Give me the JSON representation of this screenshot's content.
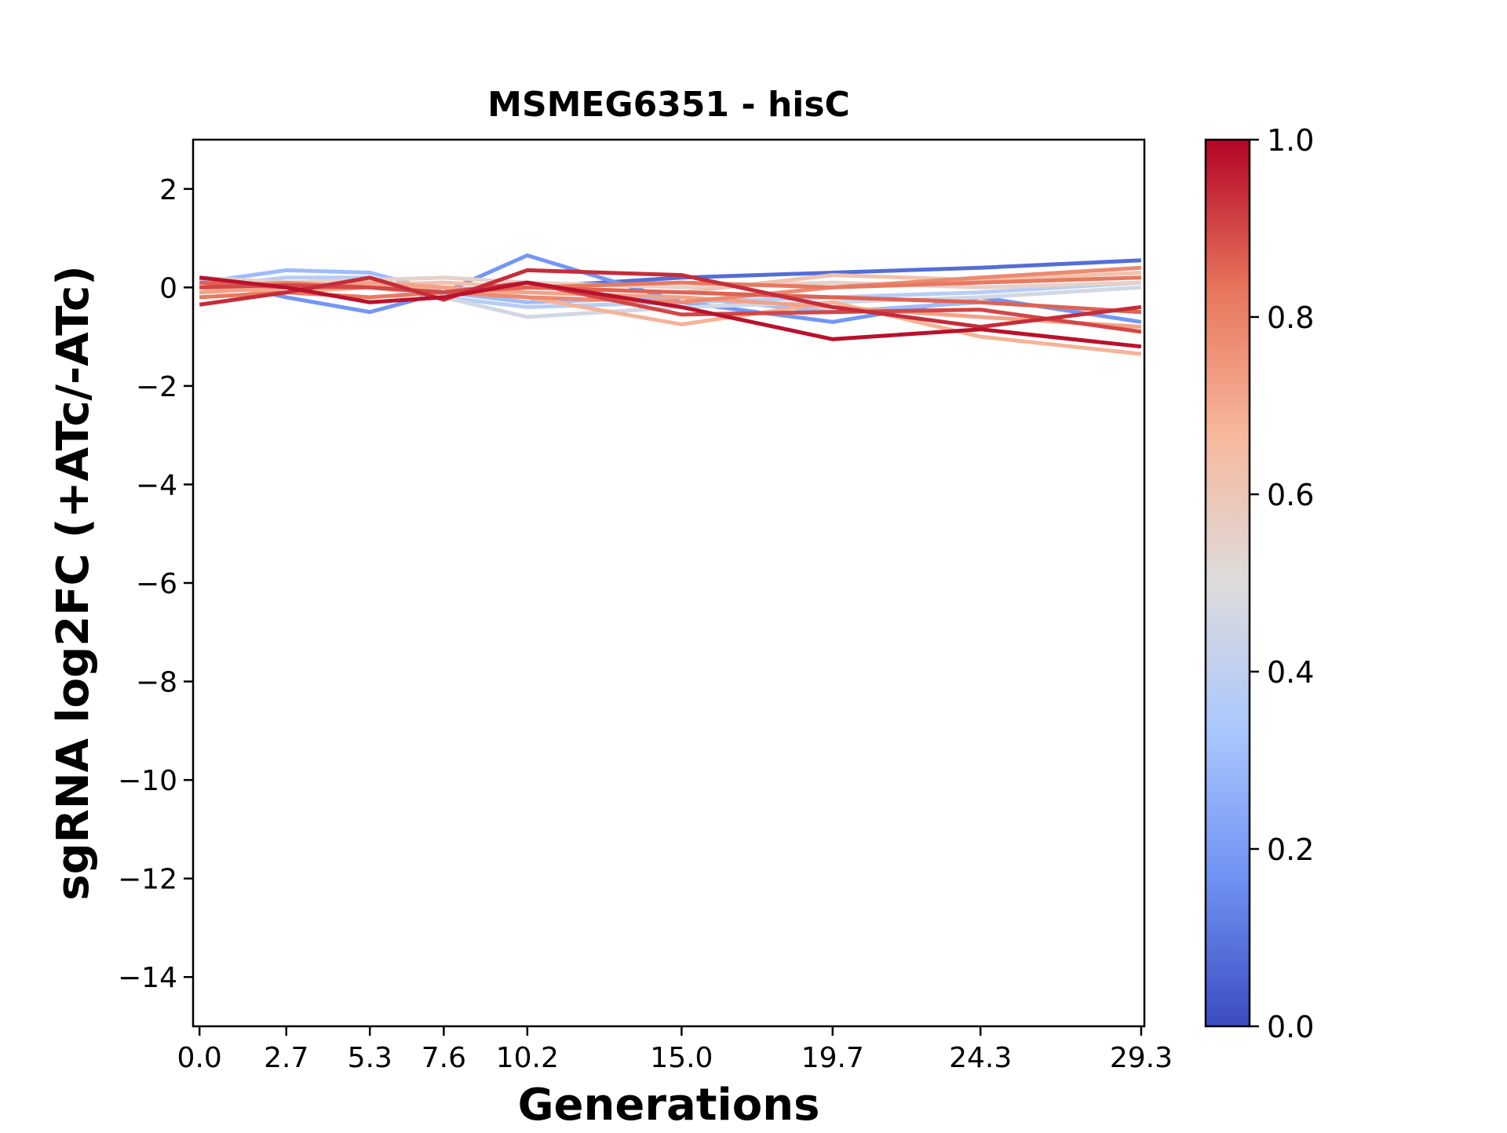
{
  "chart_data": {
    "type": "line",
    "title": "MSMEG6351 - hisC",
    "xlabel": "Generations",
    "ylabel": "sgRNA log2FC (+ATc/-ATc)",
    "x": [
      0.0,
      2.7,
      5.3,
      7.6,
      10.2,
      15.0,
      19.7,
      24.3,
      29.3
    ],
    "x_tick_labels": [
      "0.0",
      "2.7",
      "5.3",
      "7.6",
      "10.2",
      "15.0",
      "19.7",
      "24.3",
      "29.3"
    ],
    "xlim": [
      -0.2,
      29.4
    ],
    "ylim": [
      -15,
      3
    ],
    "y_ticks": [
      2,
      0,
      -2,
      -4,
      -6,
      -8,
      -10,
      -12,
      -14
    ],
    "y_tick_labels": [
      "2",
      "0",
      "−2",
      "−4",
      "−6",
      "−8",
      "−10",
      "−12",
      "−14"
    ],
    "grid": false,
    "colormap": "coolwarm",
    "colorbar": {
      "range": [
        0.0,
        1.0
      ],
      "tick_labels": [
        "0.0",
        "0.2",
        "0.4",
        "0.6",
        "0.8",
        "1.0"
      ],
      "colors": [
        "#3b4cc0",
        "#6f92f3",
        "#aac7fd",
        "#dddcdc",
        "#f7b89c",
        "#e7745b",
        "#b40426"
      ]
    },
    "series": [
      {
        "c": 0.08,
        "values": [
          0.0,
          0.1,
          0.0,
          -0.1,
          0.0,
          0.2,
          0.3,
          0.4,
          0.55
        ]
      },
      {
        "c": 0.18,
        "values": [
          0.2,
          -0.2,
          -0.5,
          -0.1,
          0.65,
          -0.3,
          -0.7,
          -0.2,
          -0.7
        ]
      },
      {
        "c": 0.3,
        "values": [
          0.1,
          0.35,
          0.3,
          -0.1,
          -0.3,
          -0.2,
          -0.5,
          -0.3,
          -0.5
        ]
      },
      {
        "c": 0.38,
        "values": [
          0.0,
          0.2,
          0.2,
          -0.2,
          -0.4,
          -0.3,
          -0.2,
          -0.1,
          0.1
        ]
      },
      {
        "c": 0.46,
        "values": [
          -0.1,
          0.0,
          0.0,
          -0.2,
          -0.6,
          -0.4,
          -0.3,
          -0.2,
          0.0
        ]
      },
      {
        "c": 0.55,
        "values": [
          0.2,
          0.1,
          0.15,
          0.2,
          0.1,
          0.0,
          0.1,
          0.0,
          0.1
        ]
      },
      {
        "c": 0.62,
        "values": [
          0.1,
          0.0,
          0.05,
          0.1,
          0.0,
          -0.1,
          0.25,
          0.15,
          0.3
        ]
      },
      {
        "c": 0.68,
        "values": [
          0.0,
          -0.1,
          0.0,
          0.0,
          -0.2,
          -0.75,
          -0.3,
          -1.0,
          -1.35
        ]
      },
      {
        "c": 0.72,
        "values": [
          -0.1,
          0.0,
          0.1,
          0.0,
          -0.1,
          -0.2,
          -0.4,
          -0.6,
          -0.8
        ]
      },
      {
        "c": 0.78,
        "values": [
          0.0,
          0.1,
          0.0,
          -0.1,
          -0.2,
          -0.3,
          0.0,
          0.2,
          0.4
        ]
      },
      {
        "c": 0.82,
        "values": [
          -0.2,
          -0.1,
          -0.2,
          -0.1,
          0.0,
          0.1,
          0.0,
          0.1,
          0.2
        ]
      },
      {
        "c": 0.86,
        "values": [
          0.1,
          0.0,
          0.0,
          -0.1,
          0.0,
          -0.1,
          -0.2,
          -0.3,
          -0.5
        ]
      },
      {
        "c": 0.9,
        "values": [
          0.0,
          0.05,
          0.0,
          -0.1,
          0.1,
          -0.55,
          -0.5,
          -0.45,
          -0.9
        ]
      },
      {
        "c": 0.94,
        "values": [
          -0.35,
          -0.1,
          0.2,
          -0.25,
          0.35,
          0.25,
          -0.4,
          -0.8,
          -0.4
        ]
      },
      {
        "c": 0.98,
        "values": [
          0.2,
          0.0,
          -0.3,
          -0.2,
          0.1,
          -0.4,
          -1.05,
          -0.85,
          -1.2
        ]
      }
    ]
  }
}
